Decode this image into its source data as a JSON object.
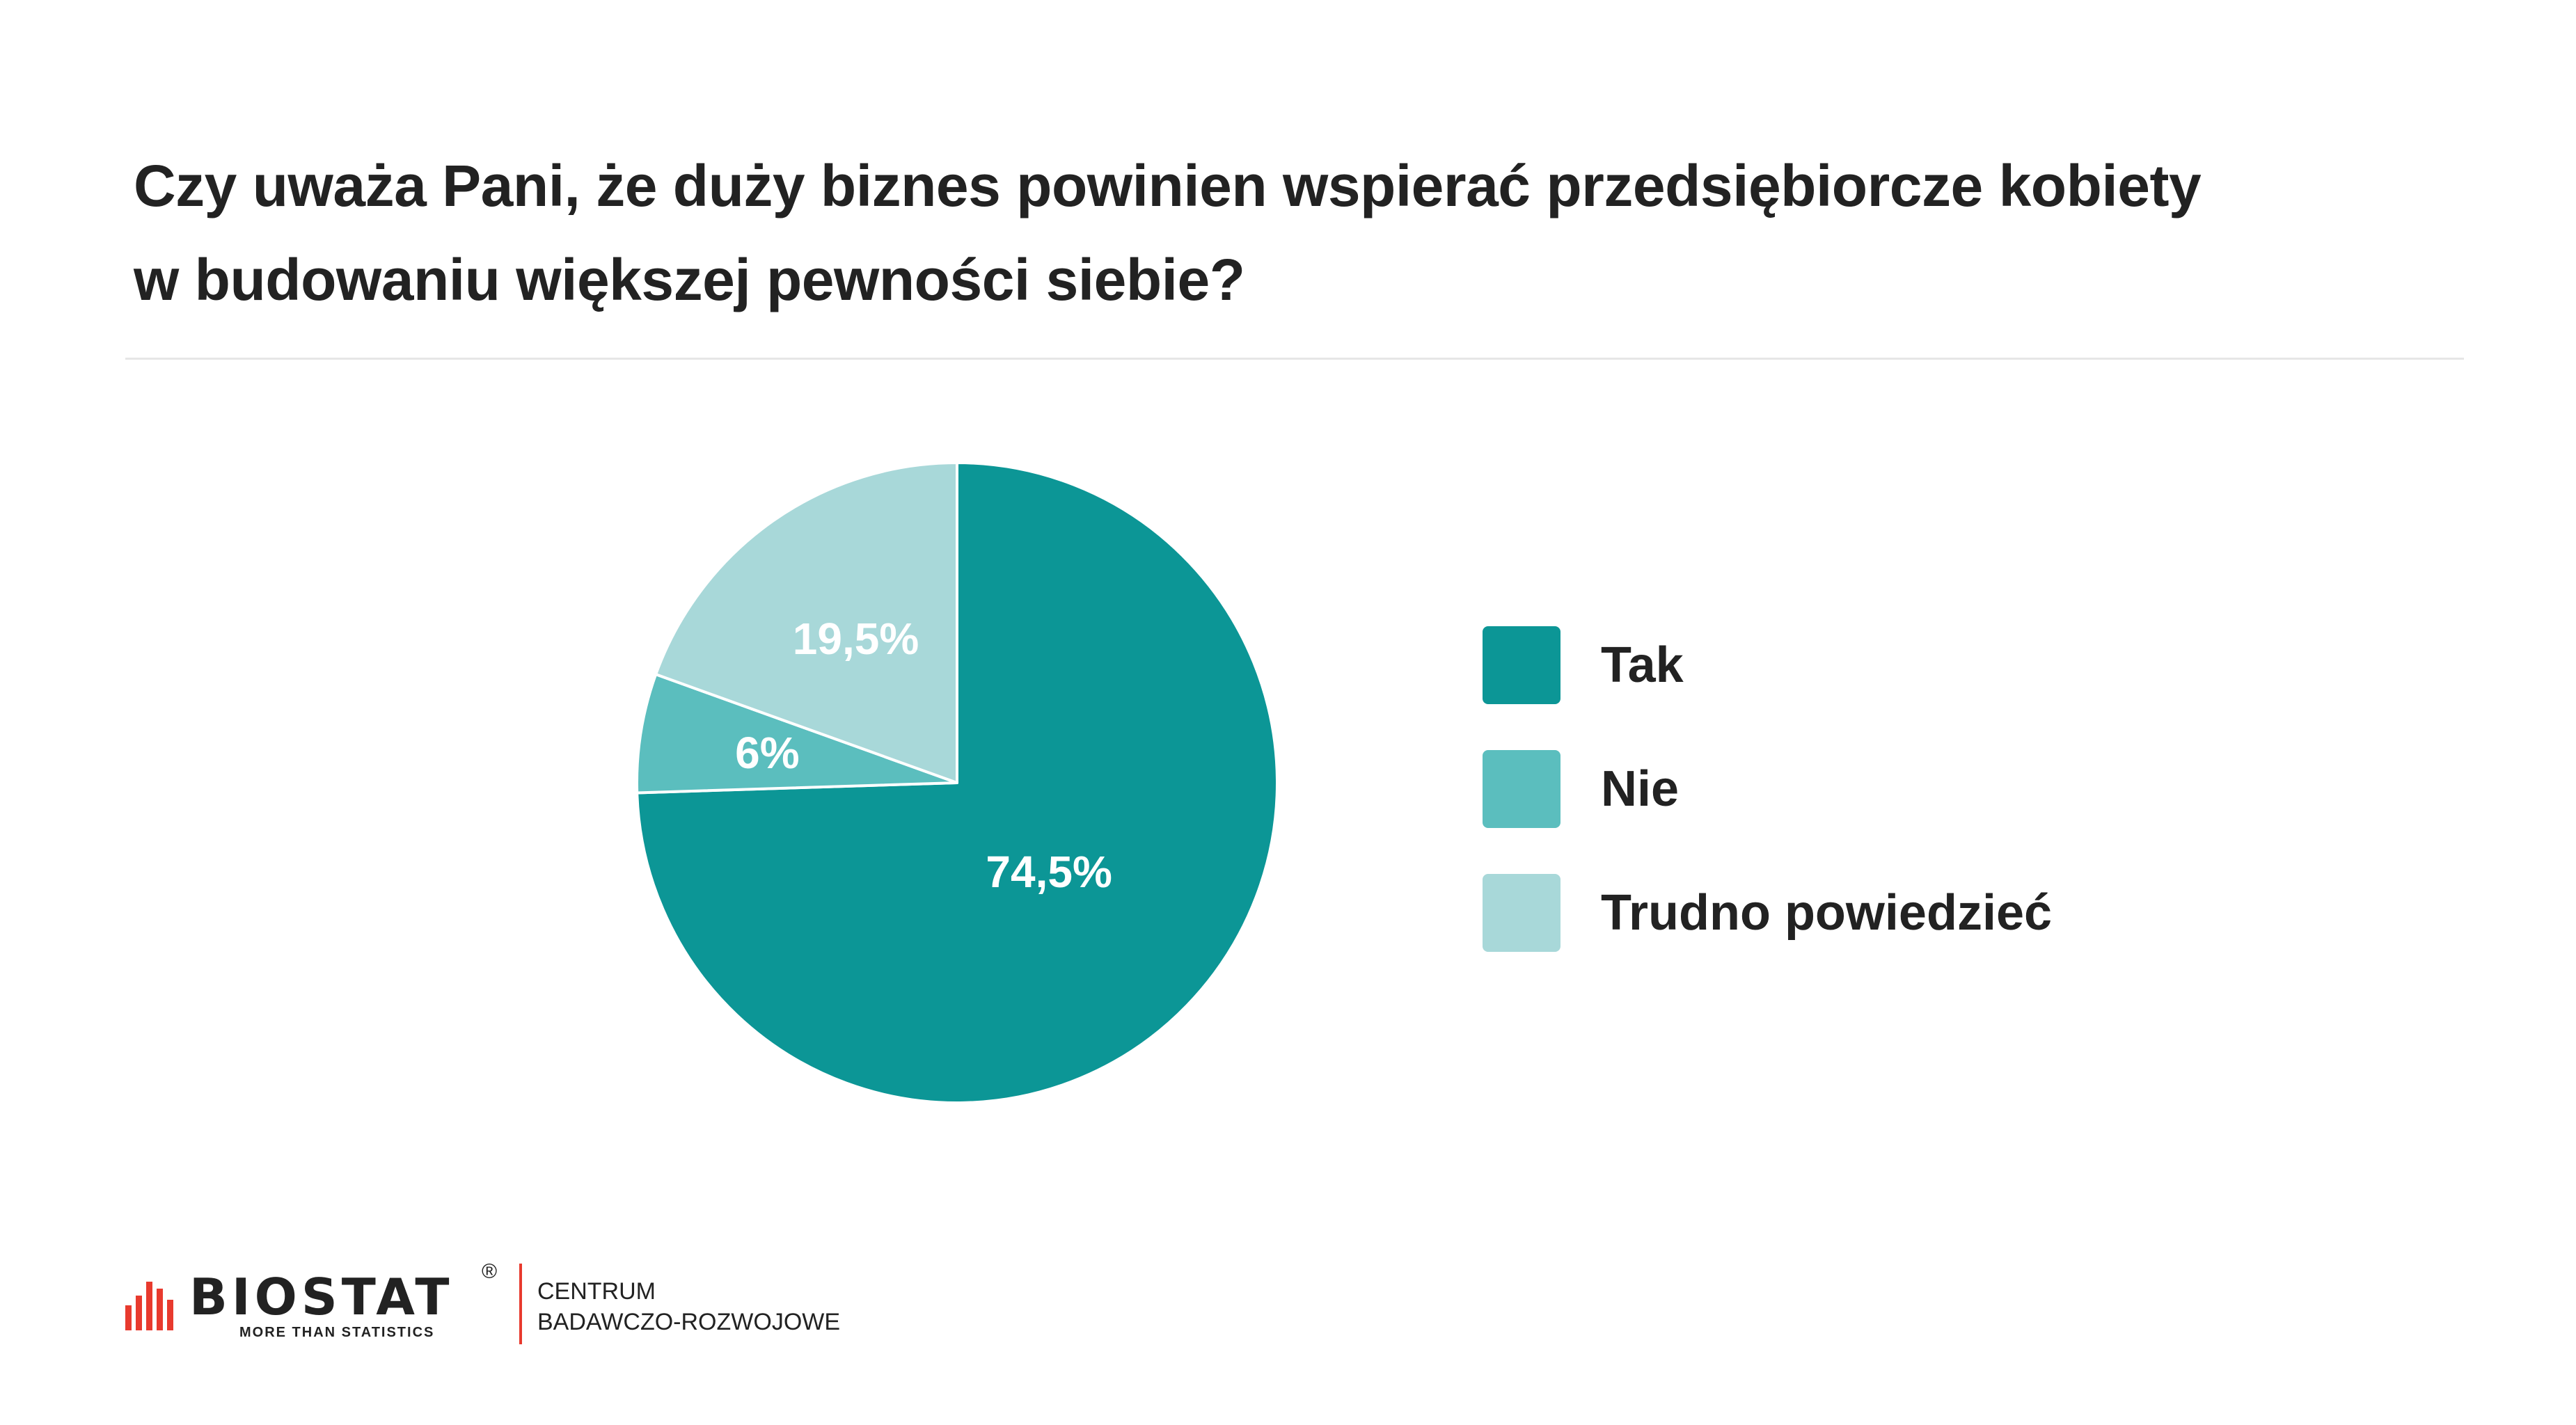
{
  "title": {
    "line1": "Czy uważa Pani, że duży biznes powinien wspierać przedsiębiorcze kobiety",
    "line2": "w budowaniu większej pewności siebie?"
  },
  "chart_data": {
    "type": "pie",
    "title": "Czy uważa Pani, że duży biznes powinien wspierać przedsiębiorcze kobiety w budowaniu większej pewności siebie?",
    "categories": [
      "Tak",
      "Nie",
      "Trudno powiedzieć"
    ],
    "values": [
      74.5,
      6,
      19.5
    ],
    "labels": [
      "74,5%",
      "6%",
      "19,5%"
    ],
    "colors": [
      "#0c9696",
      "#5bbebe",
      "#a8d8d9"
    ],
    "start": "12 o'clock",
    "direction": "clockwise",
    "legend_position": "right"
  },
  "legend": {
    "items": [
      {
        "label": "Tak",
        "color": "#0c9696"
      },
      {
        "label": "Nie",
        "color": "#5bbebe"
      },
      {
        "label": "Trudno powiedzieć",
        "color": "#a8d8d9"
      }
    ]
  },
  "footer": {
    "brand": "BIOSTAT",
    "registered": "®",
    "tagline": "MORE THAN STATISTICS",
    "sub_line1": "CENTRUM",
    "sub_line2": "BADAWCZO-ROZWOJOWE",
    "accent_color": "#e83a2e"
  }
}
